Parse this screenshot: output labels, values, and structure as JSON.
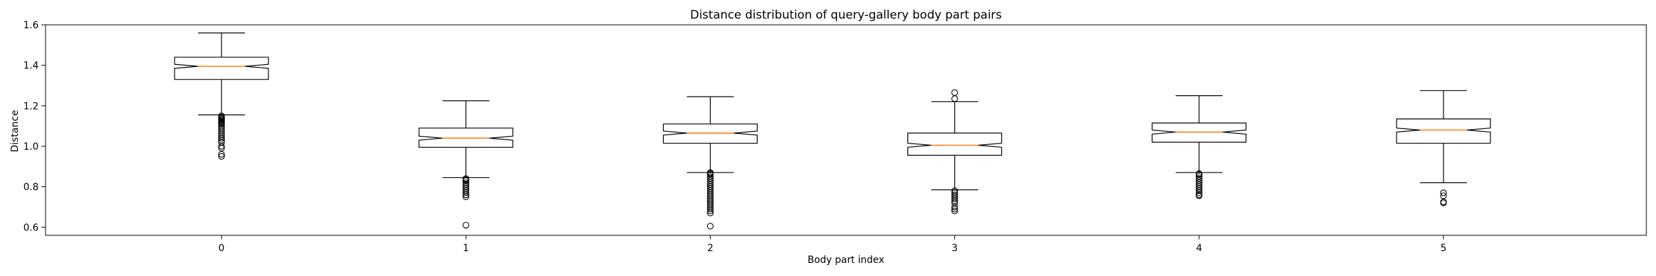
{
  "chart_data": {
    "type": "boxplot",
    "title": "Distance distribution of query-gallery body part pairs",
    "xlabel": "Body part index",
    "ylabel": "Distance",
    "categories": [
      "0",
      "1",
      "2",
      "3",
      "4",
      "5"
    ],
    "ylim": [
      0.56,
      1.6
    ],
    "yticks": [
      0.6,
      0.8,
      1.0,
      1.2,
      1.4,
      1.6
    ],
    "ytick_labels": [
      "0.6",
      "0.8",
      "1.0",
      "1.2",
      "1.4",
      "1.6"
    ],
    "notched": true,
    "grid": false,
    "colors": {
      "box": "#000000",
      "median": "#ff7f0e",
      "flier": "#000000"
    },
    "boxes": [
      {
        "label": "0",
        "whislo": 1.155,
        "q1": 1.33,
        "med": 1.395,
        "q3": 1.44,
        "whishi": 1.56,
        "notch_lo": 1.385,
        "notch_hi": 1.405,
        "fliers": [
          1.15,
          1.145,
          1.14,
          1.135,
          1.13,
          1.125,
          1.12,
          1.115,
          1.11,
          1.1,
          1.09,
          1.08,
          1.07,
          1.06,
          1.05,
          1.04,
          1.03,
          1.02,
          1.0,
          0.99,
          0.96,
          0.95
        ]
      },
      {
        "label": "1",
        "whislo": 0.845,
        "q1": 0.995,
        "med": 1.04,
        "q3": 1.09,
        "whishi": 1.225,
        "notch_lo": 1.03,
        "notch_hi": 1.05,
        "fliers": [
          0.84,
          0.835,
          0.83,
          0.82,
          0.81,
          0.8,
          0.79,
          0.78,
          0.77,
          0.76,
          0.75,
          0.61
        ]
      },
      {
        "label": "2",
        "whislo": 0.87,
        "q1": 1.015,
        "med": 1.065,
        "q3": 1.11,
        "whishi": 1.245,
        "notch_lo": 1.055,
        "notch_hi": 1.075,
        "fliers": [
          0.87,
          0.865,
          0.86,
          0.85,
          0.84,
          0.83,
          0.82,
          0.81,
          0.8,
          0.79,
          0.78,
          0.77,
          0.76,
          0.75,
          0.74,
          0.73,
          0.72,
          0.71,
          0.7,
          0.69,
          0.68,
          0.67,
          0.605
        ]
      },
      {
        "label": "3",
        "whislo": 0.785,
        "q1": 0.955,
        "med": 1.005,
        "q3": 1.065,
        "whishi": 1.22,
        "notch_lo": 0.995,
        "notch_hi": 1.015,
        "fliers": [
          1.265,
          1.235,
          0.78,
          0.77,
          0.76,
          0.75,
          0.74,
          0.73,
          0.72,
          0.7,
          0.69,
          0.68
        ]
      },
      {
        "label": "4",
        "whislo": 0.87,
        "q1": 1.02,
        "med": 1.07,
        "q3": 1.115,
        "whishi": 1.25,
        "notch_lo": 1.06,
        "notch_hi": 1.08,
        "fliers": [
          0.865,
          0.86,
          0.85,
          0.84,
          0.83,
          0.82,
          0.81,
          0.8,
          0.79,
          0.78,
          0.77,
          0.76,
          0.755
        ]
      },
      {
        "label": "5",
        "whislo": 0.82,
        "q1": 1.015,
        "med": 1.08,
        "q3": 1.135,
        "whishi": 1.275,
        "notch_lo": 1.07,
        "notch_hi": 1.09,
        "fliers": [
          0.77,
          0.755,
          0.725,
          0.72
        ]
      }
    ]
  }
}
